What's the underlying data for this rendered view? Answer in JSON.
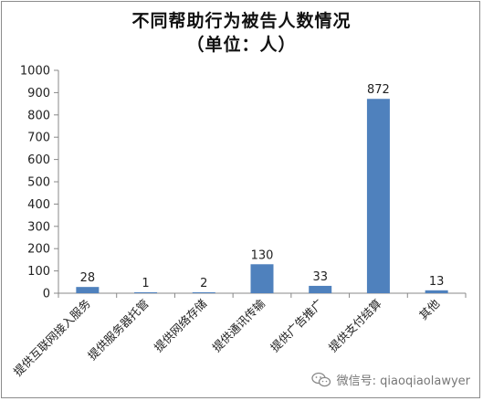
{
  "chart_data": {
    "type": "bar",
    "title_line1": "不同帮助行为被告人数情况",
    "title_line2": "（单位：人）",
    "categories": [
      "提供互联网接入服务",
      "提供服务器托管",
      "提供网络存储",
      "提供通讯传输",
      "提供广告推广",
      "提供支付结算",
      "其他"
    ],
    "values": [
      28,
      1,
      2,
      130,
      33,
      872,
      13
    ],
    "ylim": [
      0,
      1000
    ],
    "yticks": [
      0,
      100,
      200,
      300,
      400,
      500,
      600,
      700,
      800,
      900,
      1000
    ],
    "bar_color": "#4f81bd",
    "grid": false,
    "legend": "none"
  },
  "watermark": {
    "text": "微信号: qiaoqiaolawyer",
    "icon": "wechat-icon"
  }
}
